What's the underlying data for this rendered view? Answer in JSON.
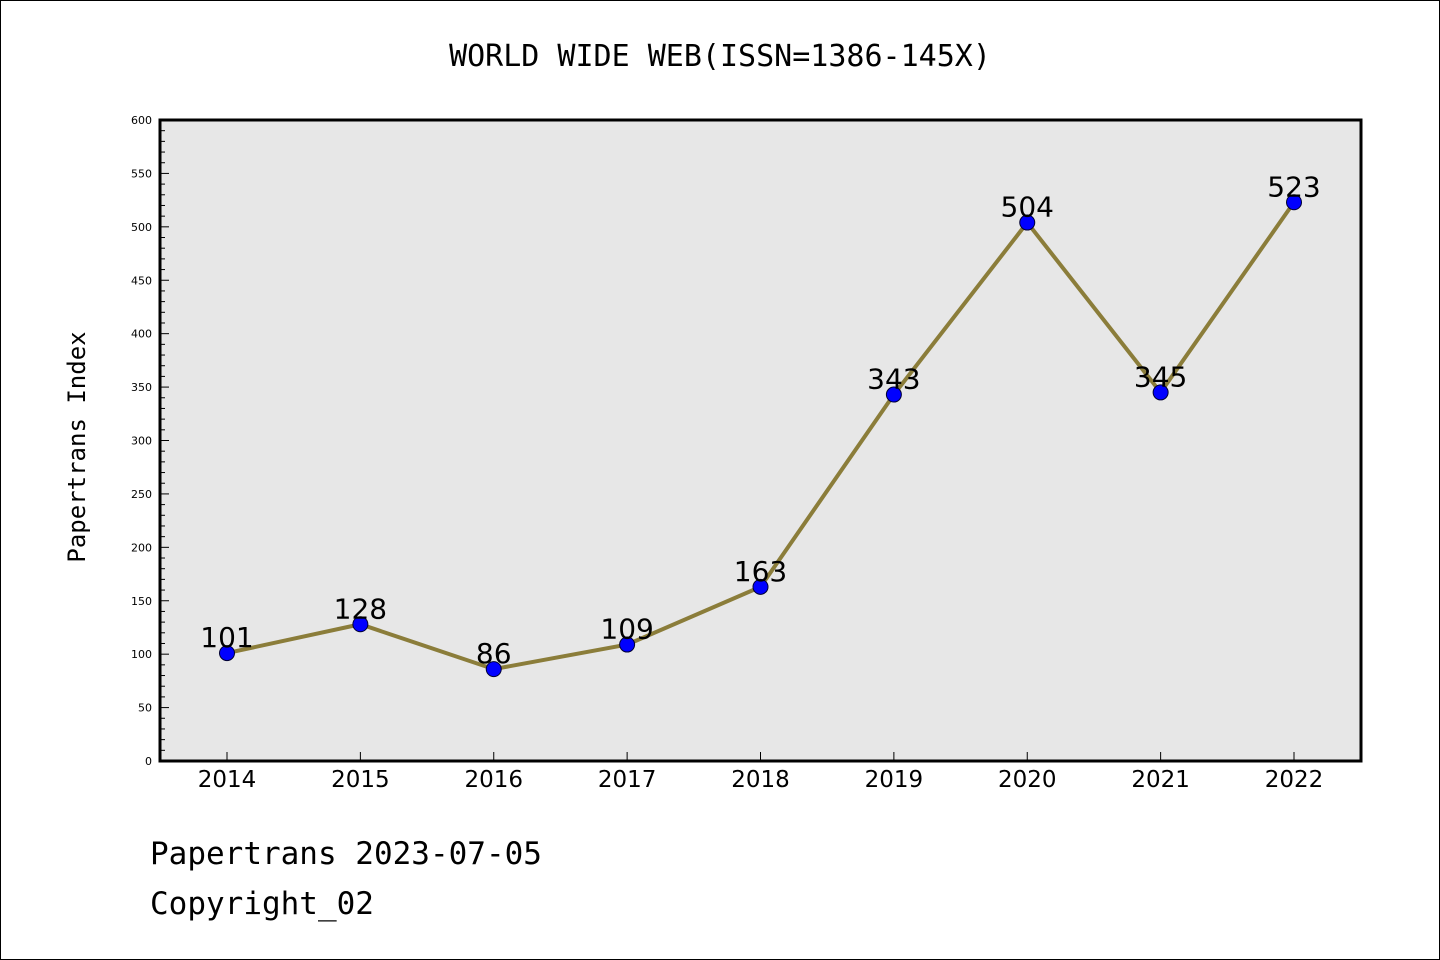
{
  "chart_data": {
    "type": "line",
    "title": "WORLD WIDE WEB(ISSN=1386-145X)",
    "xlabel": "",
    "ylabel": "Papertrans Index",
    "categories": [
      "2014",
      "2015",
      "2016",
      "2017",
      "2018",
      "2019",
      "2020",
      "2021",
      "2022"
    ],
    "series": [
      {
        "values": [
          101,
          128,
          86,
          109,
          163,
          343,
          504,
          345,
          523
        ],
        "data_labels": [
          "101",
          "128",
          "86",
          "109",
          "163",
          "343",
          "504",
          "345",
          "523"
        ]
      }
    ],
    "ylim": [
      0,
      600
    ],
    "y_ticks": [
      "0",
      "50",
      "100",
      "150",
      "200",
      "250",
      "300",
      "350",
      "400",
      "450",
      "500",
      "550",
      "600"
    ],
    "grid": false,
    "legend": "none",
    "colors": {
      "line": "#8B7D3A",
      "marker_fill": "#0000FF",
      "marker_edge": "#000033",
      "plot_background": "#E7E7E7"
    }
  },
  "footer": {
    "line1": "Papertrans 2023-07-05",
    "line2": "Copyright_02"
  }
}
